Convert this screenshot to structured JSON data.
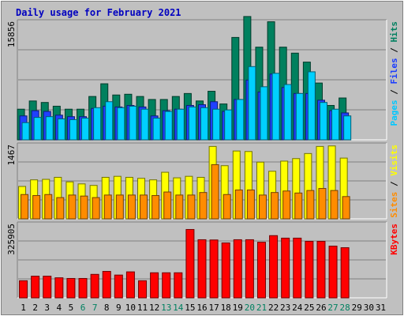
{
  "chart_data": {
    "type": "bar",
    "title": "Daily usage for February 2021",
    "days": [
      1,
      2,
      3,
      4,
      5,
      6,
      7,
      8,
      9,
      10,
      11,
      12,
      13,
      14,
      15,
      16,
      17,
      18,
      19,
      20,
      21,
      22,
      23,
      24,
      25,
      26,
      27,
      28,
      29,
      30,
      31
    ],
    "weekend_days": [
      6,
      7,
      13,
      14,
      20,
      21,
      27,
      28
    ],
    "panels": [
      {
        "id": "hits",
        "max_label": "15856",
        "ymax": 15856,
        "right_label_parts": [
          {
            "text": "Pages",
            "color": "#00c8ff"
          },
          {
            "text": " / ",
            "color": "#000000"
          },
          {
            "text": "Files",
            "color": "#1a3cff"
          },
          {
            "text": " / ",
            "color": "#000000"
          },
          {
            "text": "Hits",
            "color": "#008060"
          }
        ],
        "series": [
          {
            "name": "Hits",
            "color": "#00805e",
            "values": [
              4100,
              5200,
              5000,
              4500,
              4100,
              4100,
              5800,
              7500,
              6000,
              6100,
              5800,
              5400,
              5400,
              5800,
              6200,
              5200,
              6500,
              4800,
              13700,
              16500,
              12400,
              15800,
              12400,
              11600,
              10400,
              7600,
              4600,
              5600
            ]
          },
          {
            "name": "Files",
            "color": "#2040ff",
            "values": [
              3200,
              3900,
              3800,
              3300,
              3100,
              3100,
              4200,
              4500,
              4400,
              4600,
              4400,
              3200,
              3900,
              4100,
              4600,
              4700,
              5100,
              3800,
              5400,
              8000,
              6400,
              8800,
              7000,
              6200,
              6200,
              5300,
              3900,
              3600
            ]
          },
          {
            "name": "Pages",
            "color": "#00d0ff",
            "values": [
              2300,
              3000,
              3100,
              2800,
              2700,
              2900,
              4300,
              5100,
              4300,
              4500,
              4100,
              2900,
              3800,
              4100,
              4400,
              4300,
              4100,
              4000,
              5400,
              9800,
              7100,
              8900,
              7400,
              6200,
              9100,
              5000,
              4100,
              3200
            ]
          }
        ]
      },
      {
        "id": "visits",
        "max_label": "1467",
        "ymax": 1467,
        "right_label_parts": [
          {
            "text": "Sites",
            "color": "#ff8c00"
          },
          {
            "text": " / ",
            "color": "#000000"
          },
          {
            "text": "Visits",
            "color": "#ffff00"
          }
        ],
        "series": [
          {
            "name": "Visits",
            "color": "#ffff00",
            "values": [
              640,
              770,
              780,
              820,
              730,
              690,
              660,
              820,
              840,
              820,
              800,
              770,
              920,
              810,
              840,
              820,
              1430,
              1050,
              1340,
              1330,
              1120,
              940,
              1140,
              1190,
              1290,
              1430,
              1440,
              1200
            ]
          },
          {
            "name": "Sites",
            "color": "#ff8c00",
            "values": [
              480,
              460,
              480,
              420,
              470,
              450,
              420,
              470,
              470,
              470,
              470,
              460,
              530,
              470,
              470,
              520,
              1070,
              480,
              570,
              570,
              470,
              520,
              550,
              510,
              560,
              600,
              560,
              440
            ]
          }
        ]
      },
      {
        "id": "kbytes",
        "max_label": "325905",
        "ymax": 325905,
        "right_label_parts": [
          {
            "text": "KBytes",
            "color": "#ff0000"
          }
        ],
        "series": [
          {
            "name": "KBytes",
            "color": "#ff0000",
            "values": [
              75000,
              95000,
              95000,
              88000,
              85000,
              85000,
              103000,
              116000,
              100000,
              114000,
              75000,
              110000,
              110000,
              110000,
              300000,
              255000,
              254000,
              241000,
              255000,
              255000,
              244000,
              273000,
              262000,
              262000,
              248000,
              248000,
              227000,
              220000
            ]
          }
        ]
      }
    ]
  }
}
